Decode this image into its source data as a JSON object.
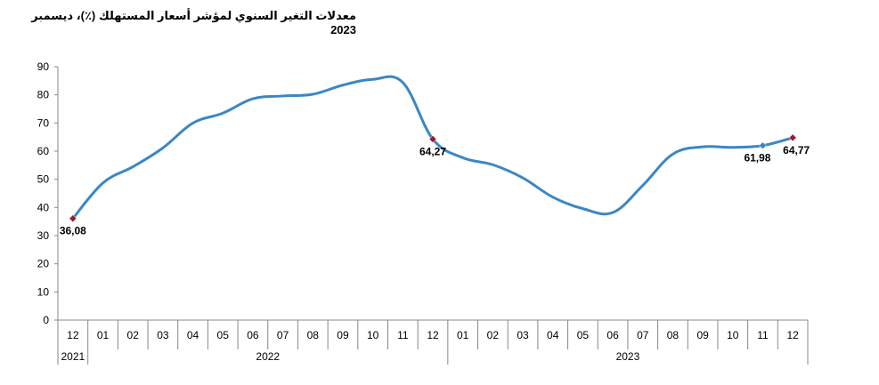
{
  "chart_data": {
    "type": "line",
    "title": "معدلات التغير السنوي لمؤشر أسعار المستهلك (٪)، ديسمبر 2023",
    "xlabel": "",
    "ylabel": "",
    "ylim": [
      0,
      90
    ],
    "yticks": [
      "0",
      "10",
      "20",
      "30",
      "40",
      "50",
      "60",
      "70",
      "80",
      "90"
    ],
    "categories": [
      "12",
      "01",
      "02",
      "03",
      "04",
      "05",
      "06",
      "07",
      "08",
      "09",
      "10",
      "11",
      "12",
      "01",
      "02",
      "03",
      "04",
      "05",
      "06",
      "07",
      "08",
      "09",
      "10",
      "11",
      "12"
    ],
    "year_groups": [
      {
        "label": "2021",
        "count": 1
      },
      {
        "label": "2022",
        "count": 12
      },
      {
        "label": "2023",
        "count": 12
      }
    ],
    "grid": false,
    "legend": "none",
    "line_color": "#3b87c4",
    "marker_color": "#9b1b30",
    "series": [
      {
        "values": [
          36.08,
          48.69,
          54.44,
          61.14,
          69.97,
          73.5,
          78.62,
          79.6,
          80.21,
          83.45,
          85.51,
          84.39,
          64.27,
          57.68,
          55.18,
          50.51,
          43.68,
          39.59,
          38.21,
          47.83,
          58.94,
          61.53,
          61.36,
          61.98,
          64.77
        ]
      }
    ],
    "data_labels": [
      {
        "index": 0,
        "text": "36,08"
      },
      {
        "index": 12,
        "text": "64,27"
      },
      {
        "index": 23,
        "text": "61,98"
      },
      {
        "index": 24,
        "text": "64,77"
      }
    ]
  }
}
